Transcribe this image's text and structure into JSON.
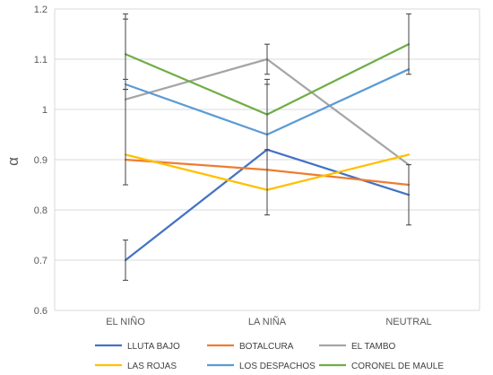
{
  "chart_data": {
    "type": "line",
    "title": "",
    "xlabel": "",
    "ylabel": "α",
    "categories": [
      "EL NIÑO",
      "LA NIÑA",
      "NEUTRAL"
    ],
    "ylim": [
      0.6,
      1.2
    ],
    "yticks": [
      "0.6",
      "0.7",
      "0.8",
      "0.9",
      "1",
      "1.1",
      "1.2"
    ],
    "grid": true,
    "legend_position": "bottom",
    "series": [
      {
        "name": "LLUTA BAJO",
        "color": "#4472C4",
        "values": [
          0.7,
          0.92,
          0.83
        ],
        "errors": [
          0.04,
          0.13,
          0.06
        ]
      },
      {
        "name": "BOTALCURA",
        "color": "#ED7D31",
        "values": [
          0.9,
          0.88,
          0.85
        ],
        "errors": [
          null,
          null,
          null
        ]
      },
      {
        "name": "EL TAMBO",
        "color": "#A5A5A5",
        "values": [
          1.02,
          1.1,
          0.89
        ],
        "errors": [
          0.17,
          0.03,
          null
        ]
      },
      {
        "name": "LAS ROJAS",
        "color": "#FFC000",
        "values": [
          0.91,
          0.84,
          0.91
        ],
        "errors": [
          null,
          null,
          null
        ]
      },
      {
        "name": "LOS DESPACHOS",
        "color": "#5B9BD5",
        "values": [
          1.05,
          0.95,
          1.08
        ],
        "errors": [
          0.01,
          null,
          null
        ]
      },
      {
        "name": "CORONEL DE MAULE",
        "color": "#70AD47",
        "values": [
          1.11,
          0.99,
          1.13
        ],
        "errors": [
          0.07,
          0.07,
          0.06
        ]
      }
    ]
  }
}
